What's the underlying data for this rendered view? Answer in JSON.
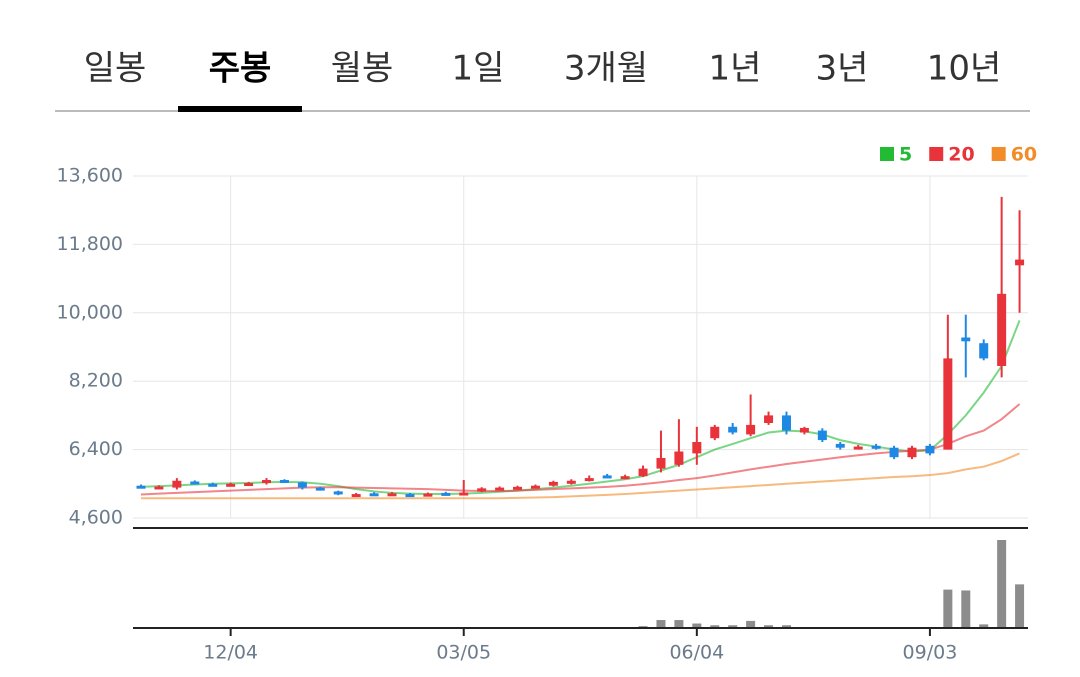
{
  "tabs": {
    "items": [
      "일봉",
      "주봉",
      "월봉",
      "1일",
      "3개월",
      "1년",
      "3년",
      "10년"
    ],
    "active": 1
  },
  "chart_data": {
    "type": "candlestick",
    "categories": [
      null,
      null,
      null,
      null,
      null,
      "12/04",
      null,
      null,
      null,
      null,
      null,
      null,
      null,
      null,
      null,
      null,
      null,
      null,
      "03/05",
      null,
      null,
      null,
      null,
      null,
      null,
      null,
      null,
      null,
      null,
      null,
      null,
      "06/04",
      null,
      null,
      null,
      null,
      null,
      null,
      null,
      null,
      null,
      null,
      null,
      null,
      "09/03",
      null,
      null,
      null,
      null,
      null
    ],
    "open": [
      5450,
      5400,
      5400,
      5560,
      5500,
      5480,
      5500,
      5520,
      5600,
      5540,
      5400,
      5300,
      5200,
      5250,
      5200,
      5230,
      5230,
      5260,
      5250,
      5300,
      5360,
      5380,
      5400,
      5450,
      5500,
      5580,
      5720,
      5650,
      5700,
      5900,
      6000,
      6300,
      6700,
      7000,
      6800,
      7100,
      7300,
      6850,
      6900,
      6550,
      6450,
      6500,
      6450,
      6200,
      6500,
      6400,
      9350,
      9200,
      8600,
      11250
    ],
    "high": [
      5480,
      5460,
      5650,
      5590,
      5530,
      5530,
      5550,
      5650,
      5620,
      5560,
      5420,
      5320,
      5260,
      5280,
      5280,
      5260,
      5270,
      5290,
      5600,
      5410,
      5430,
      5450,
      5480,
      5580,
      5620,
      5720,
      5760,
      5740,
      5980,
      6900,
      7200,
      7000,
      7050,
      7100,
      7850,
      7400,
      7400,
      7000,
      6960,
      6600,
      6520,
      6550,
      6500,
      6500,
      6550,
      9950,
      9950,
      9300,
      13050,
      12700
    ],
    "low": [
      5380,
      5380,
      5350,
      5480,
      5460,
      5450,
      5480,
      5480,
      5520,
      5350,
      5320,
      5200,
      5190,
      5180,
      5180,
      5180,
      5210,
      5200,
      5220,
      5280,
      5340,
      5360,
      5380,
      5430,
      5480,
      5560,
      5650,
      5620,
      5680,
      5800,
      5950,
      6000,
      6650,
      6800,
      6750,
      7050,
      6800,
      6800,
      6600,
      6400,
      6400,
      6400,
      6150,
      6150,
      6250,
      6400,
      8300,
      8750,
      8300,
      10000
    ],
    "close": [
      5400,
      5430,
      5580,
      5500,
      5480,
      5500,
      5520,
      5600,
      5540,
      5400,
      5350,
      5220,
      5230,
      5200,
      5250,
      5200,
      5240,
      5220,
      5270,
      5380,
      5400,
      5420,
      5450,
      5550,
      5580,
      5650,
      5680,
      5700,
      5900,
      6180,
      6350,
      6600,
      7000,
      6850,
      7050,
      7300,
      6900,
      6970,
      6650,
      6450,
      6480,
      6450,
      6200,
      6450,
      6300,
      8800,
      9250,
      8800,
      10500,
      11400
    ],
    "up_color": "#e8333a",
    "down_color": "#1e88e5",
    "series": [
      {
        "name": "5",
        "color": "#22bb33",
        "values": [
          5420,
          5440,
          5460,
          5480,
          5500,
          5510,
          5520,
          5540,
          5550,
          5540,
          5500,
          5440,
          5360,
          5300,
          5260,
          5240,
          5230,
          5230,
          5240,
          5260,
          5290,
          5320,
          5360,
          5400,
          5450,
          5500,
          5560,
          5620,
          5700,
          5850,
          6000,
          6200,
          6400,
          6550,
          6700,
          6850,
          6900,
          6880,
          6800,
          6650,
          6550,
          6480,
          6400,
          6350,
          6380,
          6800,
          7300,
          7900,
          8600,
          9800
        ]
      },
      {
        "name": "20",
        "color": "#e8333a",
        "values": [
          5220,
          5240,
          5260,
          5280,
          5300,
          5320,
          5340,
          5360,
          5380,
          5400,
          5410,
          5410,
          5400,
          5390,
          5380,
          5370,
          5360,
          5340,
          5320,
          5310,
          5310,
          5320,
          5340,
          5360,
          5380,
          5400,
          5420,
          5450,
          5490,
          5540,
          5600,
          5650,
          5720,
          5800,
          5880,
          5950,
          6020,
          6080,
          6140,
          6200,
          6250,
          6300,
          6340,
          6370,
          6400,
          6550,
          6750,
          6900,
          7200,
          7600
        ]
      },
      {
        "name": "60",
        "color": "#f28c28",
        "values": [
          5120,
          5120,
          5120,
          5120,
          5120,
          5120,
          5120,
          5120,
          5120,
          5120,
          5120,
          5120,
          5120,
          5120,
          5120,
          5120,
          5120,
          5120,
          5120,
          5120,
          5120,
          5130,
          5140,
          5150,
          5170,
          5190,
          5210,
          5230,
          5260,
          5290,
          5320,
          5350,
          5380,
          5410,
          5440,
          5470,
          5500,
          5530,
          5560,
          5590,
          5620,
          5650,
          5680,
          5700,
          5730,
          5780,
          5880,
          5950,
          6100,
          6300
        ]
      }
    ],
    "volume": {
      "color": "#8c8c8c",
      "values": [
        0,
        0,
        0,
        0,
        0,
        0,
        0,
        0,
        0,
        0,
        0,
        0,
        0,
        0,
        0,
        0,
        0,
        0,
        0,
        0,
        0,
        0,
        0,
        0,
        0,
        0,
        0,
        0,
        1,
        8,
        8,
        4,
        2,
        2,
        7,
        2,
        2,
        0,
        0,
        0,
        0,
        0,
        0,
        0,
        0,
        43,
        42,
        3,
        100,
        49
      ]
    },
    "ylim": [
      4600,
      13600
    ],
    "yticks": [
      {
        "value": 4600,
        "label": "4,600"
      },
      {
        "value": 6400,
        "label": "6,400"
      },
      {
        "value": 8200,
        "label": "8,200"
      },
      {
        "value": 10000,
        "label": "10,000"
      },
      {
        "value": 11800,
        "label": "11,800"
      },
      {
        "value": 13600,
        "label": "13,600"
      }
    ],
    "grid": true
  }
}
